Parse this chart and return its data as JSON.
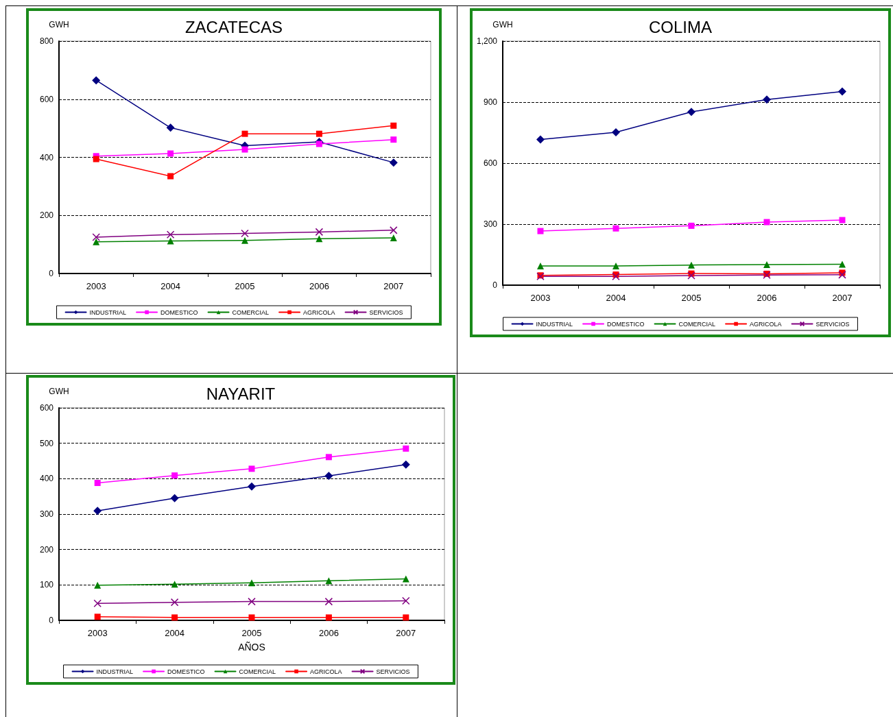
{
  "chart_data": [
    {
      "type": "line",
      "title": "ZACATECAS",
      "ylabel": "GWH",
      "categories": [
        "2003",
        "2004",
        "2005",
        "2006",
        "2007"
      ],
      "ylim": [
        0,
        800
      ],
      "yticks": [
        0,
        200,
        400,
        600,
        800
      ],
      "grid": "y",
      "legend": "bottom",
      "series": [
        {
          "name": "INDUSTRIAL",
          "color": "#000080",
          "marker": "diamond",
          "values": [
            665,
            502,
            440,
            453,
            382
          ]
        },
        {
          "name": "DOMESTICO",
          "color": "#ff00ff",
          "marker": "square",
          "values": [
            404,
            413,
            427,
            446,
            461
          ]
        },
        {
          "name": "COMERCIAL",
          "color": "#008000",
          "marker": "triangle",
          "values": [
            109,
            112,
            114,
            120,
            123
          ]
        },
        {
          "name": "AGRICOLA",
          "color": "#ff0000",
          "marker": "square",
          "values": [
            394,
            335,
            481,
            481,
            509
          ]
        },
        {
          "name": "SERVICIOS",
          "color": "#800080",
          "marker": "cross",
          "values": [
            125,
            134,
            138,
            143,
            149
          ]
        }
      ]
    },
    {
      "type": "line",
      "title": "COLIMA",
      "ylabel": "GWH",
      "categories": [
        "2003",
        "2004",
        "2005",
        "2006",
        "2007"
      ],
      "ylim": [
        0,
        1200
      ],
      "yticks": [
        0,
        300,
        600,
        900,
        {
          "value": 1200,
          "label": "1,200"
        }
      ],
      "grid": "y",
      "legend": "bottom",
      "series": [
        {
          "name": "INDUSTRIAL",
          "color": "#000080",
          "marker": "diamond",
          "values": [
            716,
            752,
            852,
            913,
            952
          ]
        },
        {
          "name": "DOMESTICO",
          "color": "#ff00ff",
          "marker": "square",
          "values": [
            266,
            279,
            292,
            310,
            320
          ]
        },
        {
          "name": "COMERCIAL",
          "color": "#008000",
          "marker": "triangle",
          "values": [
            94,
            94,
            99,
            101,
            103
          ]
        },
        {
          "name": "AGRICOLA",
          "color": "#ff0000",
          "marker": "square",
          "values": [
            48,
            52,
            57,
            56,
            61
          ]
        },
        {
          "name": "SERVICIOS",
          "color": "#800080",
          "marker": "cross",
          "values": [
            43,
            43,
            47,
            50,
            51
          ]
        }
      ]
    },
    {
      "type": "line",
      "title": "NAYARIT",
      "ylabel": "GWH",
      "xlabel": "AÑOS",
      "categories": [
        "2003",
        "2004",
        "2005",
        "2006",
        "2007"
      ],
      "ylim": [
        0,
        600
      ],
      "yticks": [
        0,
        100,
        200,
        300,
        400,
        500,
        600
      ],
      "grid": "y",
      "legend": "bottom",
      "series": [
        {
          "name": "INDUSTRIAL",
          "color": "#000080",
          "marker": "diamond",
          "values": [
            309,
            345,
            378,
            408,
            440
          ]
        },
        {
          "name": "DOMESTICO",
          "color": "#ff00ff",
          "marker": "square",
          "values": [
            388,
            409,
            428,
            461,
            485
          ]
        },
        {
          "name": "COMERCIAL",
          "color": "#008000",
          "marker": "triangle",
          "values": [
            99,
            102,
            106,
            112,
            117
          ]
        },
        {
          "name": "AGRICOLA",
          "color": "#ff0000",
          "marker": "square",
          "values": [
            10,
            8,
            8,
            8,
            8
          ]
        },
        {
          "name": "SERVICIOS",
          "color": "#800080",
          "marker": "cross",
          "values": [
            48,
            51,
            53,
            53,
            55
          ]
        }
      ]
    }
  ]
}
